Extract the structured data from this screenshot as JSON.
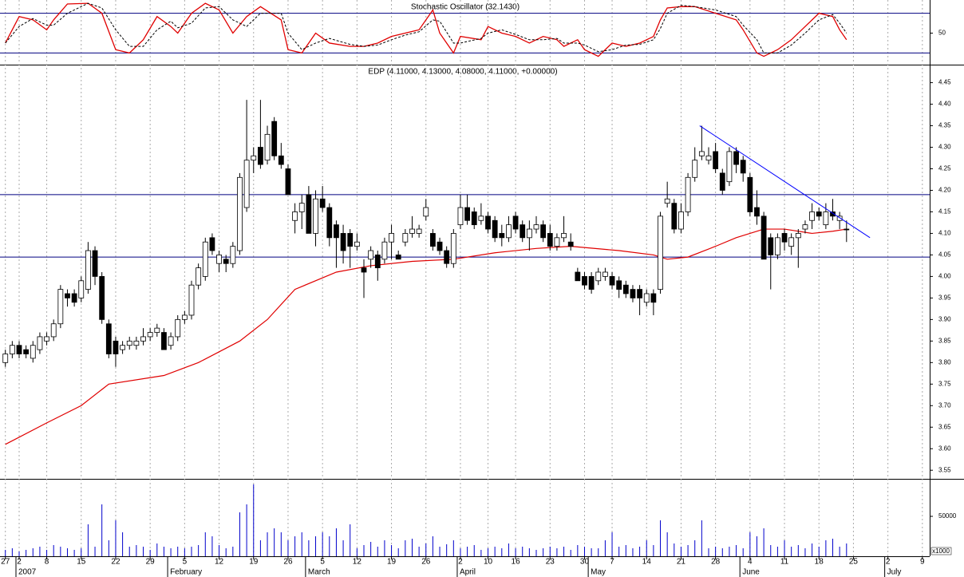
{
  "chart_data": [
    {
      "type": "line",
      "title": "Stochastic Oscillator (32.1430)",
      "x": [
        0,
        2,
        4,
        6,
        7,
        9,
        12,
        14,
        16,
        18,
        20,
        22,
        24,
        25,
        27,
        29,
        31,
        33,
        35,
        37,
        40,
        41,
        43,
        45,
        47,
        50,
        52,
        54,
        56,
        58,
        60,
        62,
        63,
        65,
        66,
        69,
        70,
        72,
        74,
        76,
        78,
        80,
        81,
        83,
        84,
        86,
        88,
        90,
        92,
        94,
        95,
        96,
        98,
        100,
        103,
        106,
        107,
        109,
        110,
        112,
        114,
        116,
        118,
        120,
        121,
        122
      ],
      "series": [
        {
          "color": "#e00000",
          "dashed": false,
          "values": [
            35,
            75,
            70,
            55,
            70,
            94,
            95,
            80,
            25,
            20,
            40,
            75,
            60,
            50,
            80,
            95,
            85,
            50,
            75,
            90,
            70,
            25,
            20,
            50,
            35,
            30,
            30,
            35,
            45,
            50,
            55,
            85,
            50,
            20,
            45,
            40,
            60,
            50,
            45,
            35,
            45,
            40,
            30,
            40,
            25,
            15,
            35,
            30,
            35,
            45,
            70,
            88,
            90,
            90,
            80,
            70,
            55,
            20,
            15,
            25,
            40,
            60,
            80,
            75,
            55,
            40
          ]
        },
        {
          "color": "#000000",
          "dashed": true,
          "values": [
            35,
            60,
            72,
            62,
            62,
            80,
            95,
            88,
            55,
            30,
            30,
            55,
            68,
            58,
            65,
            88,
            90,
            70,
            60,
            80,
            80,
            50,
            25,
            35,
            42,
            33,
            30,
            32,
            40,
            47,
            52,
            70,
            68,
            35,
            35,
            42,
            50,
            55,
            48,
            40,
            40,
            42,
            35,
            35,
            32,
            22,
            25,
            32,
            33,
            40,
            57,
            80,
            92,
            90,
            85,
            75,
            62,
            40,
            20,
            20,
            32,
            50,
            70,
            78,
            65,
            50
          ]
        }
      ],
      "ylim": [
        0,
        100
      ],
      "yticks": [
        50
      ],
      "levels": {
        "color": "#000080",
        "values": [
          80,
          20
        ]
      }
    },
    {
      "type": "candlestick",
      "title": "EDP (4.11000, 4.13000, 4.08000, 4.11000, +0.00000)",
      "categories": [
        "27",
        null,
        "2",
        null,
        null,
        null,
        "8",
        null,
        null,
        null,
        null,
        "15",
        null,
        null,
        null,
        null,
        "22",
        null,
        null,
        null,
        null,
        "29",
        null,
        null,
        null,
        null,
        "5",
        null,
        null,
        null,
        null,
        "12",
        null,
        null,
        null,
        null,
        "19",
        null,
        null,
        null,
        null,
        "26",
        null,
        null,
        null,
        null,
        "5",
        null,
        null,
        null,
        null,
        "12",
        null,
        null,
        null,
        null,
        "19",
        null,
        null,
        null,
        null,
        "26",
        null,
        null,
        null,
        null,
        "2",
        null,
        null,
        null,
        "10",
        null,
        null,
        null,
        "16",
        null,
        null,
        null,
        null,
        "23",
        null,
        null,
        null,
        null,
        "30",
        null,
        null,
        null,
        "7",
        null,
        null,
        null,
        null,
        "14",
        null,
        null,
        null,
        null,
        "21",
        null,
        null,
        null,
        null,
        "28",
        null,
        null,
        null,
        null,
        "4",
        null,
        null,
        null,
        null,
        "11",
        null,
        null,
        null,
        null,
        "18",
        null,
        null,
        null,
        null,
        "25",
        null,
        null,
        null,
        null,
        "2",
        null,
        null,
        null,
        null,
        "9"
      ],
      "months": [
        null,
        null,
        "2007",
        null,
        null,
        null,
        null,
        null,
        null,
        null,
        null,
        null,
        null,
        null,
        null,
        null,
        null,
        null,
        null,
        null,
        null,
        null,
        null,
        null,
        "February",
        null,
        null,
        null,
        null,
        null,
        null,
        null,
        null,
        null,
        null,
        null,
        null,
        null,
        null,
        null,
        null,
        null,
        null,
        null,
        "March",
        null,
        null,
        null,
        null,
        null,
        null,
        null,
        null,
        null,
        null,
        null,
        null,
        null,
        null,
        null,
        null,
        null,
        null,
        null,
        null,
        null,
        "April",
        null,
        null,
        null,
        null,
        null,
        null,
        null,
        null,
        null,
        null,
        null,
        null,
        null,
        null,
        null,
        null,
        null,
        null,
        "May",
        null,
        null,
        null,
        null,
        null,
        null,
        null,
        null,
        null,
        null,
        null,
        null,
        null,
        null,
        null,
        null,
        null,
        null,
        null,
        null,
        null,
        "June",
        null,
        null,
        null,
        null,
        null,
        null,
        null,
        null,
        null,
        null,
        null,
        null,
        null,
        null,
        null,
        null,
        null,
        null,
        null,
        null,
        "July",
        null,
        null,
        null,
        null,
        null
      ],
      "open": [
        3.8,
        3.82,
        3.84,
        3.83,
        3.81,
        3.83,
        3.85,
        3.86,
        3.89,
        3.96,
        3.96,
        3.95,
        3.97,
        4.06,
        4.0,
        3.89,
        3.85,
        3.83,
        3.84,
        3.84,
        3.85,
        3.86,
        3.87,
        3.87,
        3.84,
        3.86,
        3.9,
        3.91,
        3.98,
        4.0,
        4.09,
        4.03,
        4.04,
        4.03,
        4.06,
        4.16,
        4.27,
        4.3,
        4.27,
        4.36,
        4.28,
        4.25,
        4.13,
        4.15,
        4.19,
        4.1,
        4.18,
        4.16,
        4.12,
        4.1,
        4.1,
        4.07,
        4.02,
        4.04,
        4.05,
        4.04,
        4.08,
        4.05,
        4.08,
        4.1,
        4.1,
        4.14,
        4.1,
        4.08,
        4.06,
        4.03,
        4.12,
        4.16,
        4.15,
        4.13,
        4.14,
        4.13,
        4.1,
        4.09,
        4.14,
        4.12,
        4.09,
        4.11,
        4.12,
        4.1,
        4.07,
        4.09,
        4.08,
        4.01,
        4.0,
        4.0,
        3.99,
        4.0,
        4.0,
        3.99,
        3.98,
        3.97,
        3.97,
        3.94,
        3.96,
        3.97,
        4.17,
        4.17,
        4.11,
        4.15,
        4.23,
        4.28,
        4.27,
        4.29,
        4.24,
        4.22,
        4.29,
        4.27,
        4.23,
        4.16,
        4.14,
        4.09,
        4.05,
        4.1,
        4.07,
        4.09,
        4.11,
        4.13,
        4.15,
        4.12,
        4.15,
        4.13,
        4.11,
        null,
        null,
        null,
        null,
        null,
        null,
        null,
        null,
        null,
        null,
        null
      ],
      "high": [
        3.83,
        3.85,
        3.85,
        3.84,
        3.85,
        3.87,
        3.87,
        3.9,
        3.98,
        3.97,
        3.97,
        4.0,
        4.08,
        4.07,
        4.01,
        3.9,
        3.86,
        3.85,
        3.86,
        3.86,
        3.88,
        3.88,
        3.89,
        3.88,
        3.87,
        3.91,
        3.92,
        3.99,
        4.03,
        4.09,
        4.1,
        4.06,
        4.05,
        4.08,
        4.24,
        4.41,
        4.3,
        4.41,
        4.35,
        4.37,
        4.31,
        4.26,
        4.17,
        4.19,
        4.21,
        4.2,
        4.21,
        4.17,
        4.13,
        4.12,
        4.11,
        4.1,
        4.04,
        4.07,
        4.06,
        4.09,
        4.12,
        4.06,
        4.11,
        4.14,
        4.12,
        4.18,
        4.11,
        4.09,
        4.07,
        4.11,
        4.19,
        4.19,
        4.16,
        4.17,
        4.15,
        4.14,
        4.12,
        4.14,
        4.15,
        4.13,
        4.13,
        4.14,
        4.13,
        4.12,
        4.1,
        4.14,
        4.1,
        4.02,
        4.01,
        4.01,
        4.02,
        4.02,
        4.01,
        4.0,
        3.99,
        3.98,
        3.98,
        3.97,
        3.97,
        4.15,
        4.22,
        4.18,
        4.17,
        4.24,
        4.3,
        4.35,
        4.3,
        4.31,
        4.25,
        4.3,
        4.3,
        4.28,
        4.24,
        4.2,
        4.15,
        4.1,
        4.1,
        4.11,
        4.1,
        4.11,
        4.13,
        4.17,
        4.16,
        4.17,
        4.18,
        4.15,
        4.13,
        null,
        null,
        null,
        null,
        null,
        null,
        null,
        null,
        null,
        null,
        null
      ],
      "low": [
        3.79,
        3.81,
        3.81,
        3.81,
        3.8,
        3.82,
        3.84,
        3.85,
        3.88,
        3.93,
        3.93,
        3.94,
        3.96,
        3.98,
        3.89,
        3.81,
        3.79,
        3.82,
        3.83,
        3.83,
        3.84,
        3.85,
        3.86,
        3.83,
        3.83,
        3.85,
        3.89,
        3.9,
        3.97,
        3.99,
        4.05,
        4.01,
        4.01,
        4.02,
        4.05,
        4.15,
        4.24,
        4.25,
        4.26,
        4.27,
        4.25,
        4.19,
        4.1,
        4.11,
        4.1,
        4.07,
        4.15,
        4.07,
        4.02,
        4.03,
        4.02,
        4.06,
        3.95,
        4.02,
        3.99,
        4.03,
        4.04,
        4.04,
        4.07,
        4.09,
        4.09,
        4.13,
        4.06,
        4.05,
        4.02,
        4.02,
        4.11,
        4.12,
        4.11,
        4.12,
        4.1,
        4.08,
        4.07,
        4.08,
        4.1,
        4.08,
        4.06,
        4.1,
        4.08,
        4.06,
        4.06,
        4.08,
        4.06,
        3.99,
        3.97,
        3.96,
        3.98,
        3.99,
        3.97,
        3.95,
        3.95,
        3.94,
        3.91,
        3.93,
        3.91,
        3.96,
        4.16,
        4.1,
        4.1,
        4.14,
        4.22,
        4.27,
        4.26,
        4.24,
        4.19,
        4.21,
        4.24,
        4.22,
        4.14,
        4.12,
        4.04,
        3.97,
        4.04,
        4.06,
        4.05,
        4.02,
        4.1,
        4.11,
        4.13,
        4.11,
        4.13,
        4.11,
        4.08,
        null,
        null,
        null,
        null,
        null,
        null,
        null,
        null,
        null,
        null,
        null
      ],
      "close": [
        3.82,
        3.84,
        3.82,
        3.82,
        3.84,
        3.86,
        3.86,
        3.89,
        3.97,
        3.95,
        3.94,
        3.99,
        4.06,
        4.0,
        3.9,
        3.82,
        3.82,
        3.84,
        3.85,
        3.85,
        3.86,
        3.87,
        3.88,
        3.83,
        3.86,
        3.9,
        3.91,
        3.98,
        4.02,
        4.08,
        4.06,
        4.05,
        4.03,
        4.07,
        4.23,
        4.27,
        4.28,
        4.26,
        4.33,
        4.28,
        4.26,
        4.19,
        4.15,
        4.17,
        4.1,
        4.18,
        4.16,
        4.09,
        4.09,
        4.06,
        4.07,
        4.08,
        4.01,
        4.06,
        4.02,
        4.08,
        4.1,
        4.04,
        4.1,
        4.11,
        4.11,
        4.16,
        4.07,
        4.06,
        4.03,
        4.1,
        4.16,
        4.13,
        4.12,
        4.14,
        4.11,
        4.09,
        4.09,
        4.12,
        4.11,
        4.09,
        4.11,
        4.12,
        4.09,
        4.07,
        4.09,
        4.1,
        4.07,
        3.99,
        3.98,
        3.97,
        4.01,
        4.01,
        3.98,
        3.97,
        3.96,
        3.95,
        3.95,
        3.96,
        3.94,
        4.14,
        4.18,
        4.11,
        4.15,
        4.23,
        4.27,
        4.29,
        4.28,
        4.25,
        4.2,
        4.29,
        4.26,
        4.24,
        4.15,
        4.14,
        4.04,
        4.05,
        4.09,
        4.08,
        4.09,
        4.1,
        4.12,
        4.15,
        4.14,
        4.15,
        4.14,
        4.14,
        4.11,
        null,
        null,
        null,
        null,
        null,
        null,
        null,
        null,
        null,
        null,
        null
      ],
      "color_up": "#ffffff",
      "color_down": "#000000",
      "ylim": [
        3.53,
        4.49
      ],
      "yticks": [
        3.55,
        {
          "value": 3.6,
          "label": "3.60"
        },
        3.65,
        {
          "value": 3.7,
          "label": "3.70"
        },
        3.75,
        {
          "value": 3.8,
          "label": "3.80"
        },
        3.85,
        {
          "value": 3.9,
          "label": "3.90"
        },
        3.95,
        {
          "value": 4,
          "label": "4.00"
        },
        4.05,
        {
          "value": 4.1,
          "label": "4.10"
        },
        4.15,
        {
          "value": 4.2,
          "label": "4.20"
        },
        4.25,
        {
          "value": 4.3,
          "label": "4.30"
        },
        4.35,
        {
          "value": 4.4,
          "label": "4.40"
        },
        4.45
      ],
      "grid": true,
      "moving_average": {
        "color": "#e00000",
        "x": [
          0,
          6,
          11,
          15,
          23,
          28,
          34,
          38,
          42,
          48,
          53,
          59,
          65,
          71,
          77,
          82,
          89,
          94,
          96,
          99,
          103,
          106,
          110,
          113,
          117,
          120,
          122
        ],
        "values": [
          3.61,
          3.66,
          3.7,
          3.75,
          3.77,
          3.8,
          3.85,
          3.9,
          3.97,
          4.01,
          4.025,
          4.035,
          4.04,
          4.055,
          4.065,
          4.07,
          4.06,
          4.05,
          4.04,
          4.045,
          4.07,
          4.09,
          4.11,
          4.11,
          4.1,
          4.105,
          4.11
        ]
      },
      "hlines": {
        "color": "#000080",
        "values": [
          4.19,
          4.045
        ]
      },
      "trendline": {
        "color": "#0000ff",
        "x": [
          100.7,
          125.4
        ],
        "values": [
          4.35,
          4.09
        ]
      }
    },
    {
      "type": "bar",
      "color": "#0000cc",
      "unit_label": "x1000",
      "values": [
        8000,
        10000,
        6000,
        8000,
        10000,
        12000,
        8000,
        14000,
        12000,
        10000,
        8000,
        10000,
        40000,
        12000,
        65000,
        20000,
        45000,
        30000,
        12000,
        14000,
        12000,
        8000,
        16000,
        12000,
        10000,
        12000,
        10000,
        12000,
        14000,
        30000,
        25000,
        14000,
        10000,
        12000,
        55000,
        65000,
        90000,
        20000,
        30000,
        35000,
        30000,
        20000,
        25000,
        30000,
        20000,
        25000,
        30000,
        25000,
        35000,
        20000,
        40000,
        10000,
        14000,
        18000,
        12000,
        20000,
        14000,
        10000,
        20000,
        22000,
        12000,
        16000,
        25000,
        12000,
        15000,
        20000,
        10000,
        12000,
        14000,
        8000,
        10000,
        12000,
        10000,
        16000,
        10000,
        12000,
        10000,
        8000,
        10000,
        12000,
        10000,
        12000,
        8000,
        14000,
        12000,
        10000,
        10000,
        20000,
        30000,
        12000,
        14000,
        10000,
        12000,
        20000,
        14000,
        45000,
        30000,
        16000,
        12000,
        14000,
        20000,
        45000,
        10000,
        12000,
        10000,
        12000,
        14000,
        10000,
        30000,
        25000,
        35000,
        14000,
        12000,
        20000,
        12000,
        14000,
        10000,
        16000,
        12000,
        20000,
        22000,
        12000,
        16000,
        null,
        null,
        null,
        null,
        null,
        null,
        null,
        null,
        null,
        null,
        null
      ],
      "ylim": [
        0,
        97000
      ],
      "yticks": [
        50000
      ]
    }
  ]
}
